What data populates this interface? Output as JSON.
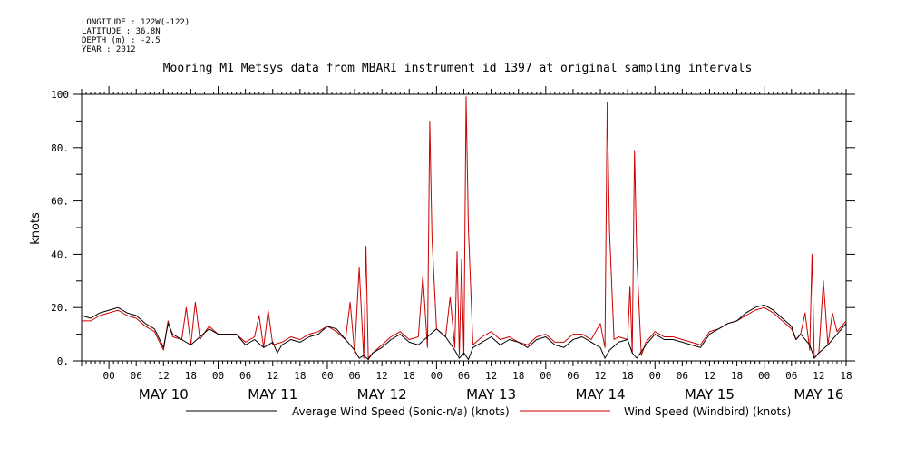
{
  "meta": {
    "longitude": "LONGITUDE : 122W(-122)",
    "latitude": "LATITUDE : 36.8N",
    "depth": "DEPTH (m) : -2.5",
    "year": "YEAR : 2012"
  },
  "chart_data": {
    "type": "line",
    "title": "Mooring M1 Metsys data from MBARI instrument id 1397 at original sampling intervals",
    "ylabel": "knots",
    "xlabel": "",
    "ylim": [
      0,
      100
    ],
    "y_ticks": [
      "0.",
      "20.",
      "40.",
      "60.",
      "80.",
      "100"
    ],
    "y_tick_values": [
      0,
      20,
      40,
      60,
      80,
      100
    ],
    "xlim_hours": [
      -6,
      162
    ],
    "hour_tick_labels": [
      "00",
      "06",
      "12",
      "18",
      "00",
      "06",
      "12",
      "18",
      "00",
      "06",
      "12",
      "18",
      "00",
      "06",
      "12",
      "18",
      "00",
      "06",
      "12",
      "18",
      "00",
      "06",
      "12",
      "18",
      "00",
      "06",
      "12",
      "18"
    ],
    "day_labels": [
      "MAY 10",
      "MAY 11",
      "MAY 12",
      "MAY 13",
      "MAY 14",
      "MAY 15",
      "MAY 16"
    ],
    "grid": false,
    "legend_position": "bottom",
    "series": [
      {
        "name": "Average Wind Speed (Sonic-n/a) (knots)",
        "color": "#000000",
        "points": [
          [
            -6,
            17
          ],
          [
            -4,
            16
          ],
          [
            -2,
            18
          ],
          [
            0,
            19
          ],
          [
            2,
            20
          ],
          [
            4,
            18
          ],
          [
            6,
            17
          ],
          [
            8,
            14
          ],
          [
            10,
            12
          ],
          [
            12,
            5
          ],
          [
            13,
            14
          ],
          [
            14,
            10
          ],
          [
            16,
            8
          ],
          [
            18,
            6
          ],
          [
            20,
            9
          ],
          [
            22,
            12
          ],
          [
            24,
            10
          ],
          [
            26,
            10
          ],
          [
            28,
            10
          ],
          [
            30,
            6
          ],
          [
            32,
            8
          ],
          [
            34,
            5
          ],
          [
            36,
            7
          ],
          [
            37,
            3
          ],
          [
            38,
            6
          ],
          [
            40,
            8
          ],
          [
            42,
            7
          ],
          [
            44,
            9
          ],
          [
            46,
            10
          ],
          [
            48,
            13
          ],
          [
            50,
            12
          ],
          [
            52,
            8
          ],
          [
            54,
            4
          ],
          [
            55,
            1
          ],
          [
            56,
            2
          ],
          [
            57,
            0.5
          ],
          [
            58,
            3
          ],
          [
            60,
            5
          ],
          [
            62,
            8
          ],
          [
            64,
            10
          ],
          [
            66,
            7
          ],
          [
            68,
            6
          ],
          [
            70,
            9
          ],
          [
            72,
            12
          ],
          [
            74,
            9
          ],
          [
            76,
            4
          ],
          [
            77,
            1
          ],
          [
            78,
            3
          ],
          [
            79,
            0.5
          ],
          [
            80,
            5
          ],
          [
            82,
            7
          ],
          [
            84,
            9
          ],
          [
            86,
            6
          ],
          [
            88,
            8
          ],
          [
            90,
            7
          ],
          [
            92,
            5
          ],
          [
            94,
            8
          ],
          [
            96,
            9
          ],
          [
            98,
            6
          ],
          [
            100,
            5
          ],
          [
            102,
            8
          ],
          [
            104,
            9
          ],
          [
            106,
            7
          ],
          [
            108,
            5
          ],
          [
            109,
            1
          ],
          [
            110,
            4
          ],
          [
            112,
            7
          ],
          [
            114,
            8
          ],
          [
            115,
            3
          ],
          [
            116,
            1
          ],
          [
            118,
            6
          ],
          [
            120,
            10
          ],
          [
            122,
            8
          ],
          [
            124,
            8
          ],
          [
            126,
            7
          ],
          [
            128,
            6
          ],
          [
            130,
            5
          ],
          [
            132,
            10
          ],
          [
            134,
            12
          ],
          [
            136,
            14
          ],
          [
            138,
            15
          ],
          [
            140,
            18
          ],
          [
            142,
            20
          ],
          [
            144,
            21
          ],
          [
            146,
            19
          ],
          [
            148,
            16
          ],
          [
            150,
            13
          ],
          [
            151,
            8
          ],
          [
            152,
            10
          ],
          [
            154,
            6
          ],
          [
            155,
            1
          ],
          [
            156,
            3
          ],
          [
            158,
            6
          ],
          [
            160,
            10
          ],
          [
            162,
            14
          ]
        ]
      },
      {
        "name": "Wind Speed (Windbird) (knots)",
        "color": "#cc0000",
        "points": [
          [
            -6,
            15
          ],
          [
            -4,
            15
          ],
          [
            -2,
            17
          ],
          [
            0,
            18
          ],
          [
            2,
            19
          ],
          [
            4,
            17
          ],
          [
            6,
            16
          ],
          [
            8,
            13
          ],
          [
            10,
            11
          ],
          [
            12,
            4
          ],
          [
            13,
            15
          ],
          [
            14,
            9
          ],
          [
            16,
            8
          ],
          [
            17,
            20
          ],
          [
            18,
            6
          ],
          [
            19,
            22
          ],
          [
            20,
            8
          ],
          [
            22,
            13
          ],
          [
            24,
            10
          ],
          [
            26,
            10
          ],
          [
            28,
            10
          ],
          [
            30,
            7
          ],
          [
            32,
            9
          ],
          [
            33,
            17
          ],
          [
            34,
            5
          ],
          [
            35,
            19
          ],
          [
            36,
            6
          ],
          [
            38,
            7
          ],
          [
            40,
            9
          ],
          [
            42,
            8
          ],
          [
            44,
            10
          ],
          [
            46,
            11
          ],
          [
            48,
            13
          ],
          [
            50,
            11
          ],
          [
            52,
            8
          ],
          [
            53,
            22
          ],
          [
            54,
            3
          ],
          [
            55,
            35
          ],
          [
            56,
            1
          ],
          [
            56.5,
            43
          ],
          [
            57,
            1
          ],
          [
            58,
            3
          ],
          [
            60,
            6
          ],
          [
            62,
            9
          ],
          [
            64,
            11
          ],
          [
            66,
            8
          ],
          [
            68,
            9
          ],
          [
            69,
            32
          ],
          [
            70,
            5
          ],
          [
            70.5,
            90
          ],
          [
            71,
            46
          ],
          [
            72,
            12
          ],
          [
            74,
            9
          ],
          [
            75,
            24
          ],
          [
            76,
            5
          ],
          [
            76.5,
            41
          ],
          [
            77,
            2
          ],
          [
            77.5,
            38
          ],
          [
            78,
            2
          ],
          [
            78.5,
            99
          ],
          [
            79,
            50
          ],
          [
            80,
            6
          ],
          [
            82,
            9
          ],
          [
            84,
            11
          ],
          [
            86,
            8
          ],
          [
            88,
            9
          ],
          [
            90,
            7
          ],
          [
            92,
            6
          ],
          [
            94,
            9
          ],
          [
            96,
            10
          ],
          [
            98,
            7
          ],
          [
            100,
            7
          ],
          [
            102,
            10
          ],
          [
            104,
            10
          ],
          [
            106,
            8
          ],
          [
            108,
            14
          ],
          [
            109,
            5
          ],
          [
            109.5,
            97
          ],
          [
            110,
            49
          ],
          [
            111,
            8
          ],
          [
            112,
            9
          ],
          [
            114,
            8
          ],
          [
            114.5,
            28
          ],
          [
            115,
            3
          ],
          [
            115.5,
            79
          ],
          [
            116,
            39
          ],
          [
            117,
            2
          ],
          [
            118,
            7
          ],
          [
            120,
            11
          ],
          [
            122,
            9
          ],
          [
            124,
            9
          ],
          [
            126,
            8
          ],
          [
            128,
            7
          ],
          [
            130,
            6
          ],
          [
            132,
            11
          ],
          [
            134,
            12
          ],
          [
            136,
            14
          ],
          [
            138,
            15
          ],
          [
            140,
            17
          ],
          [
            142,
            19
          ],
          [
            144,
            20
          ],
          [
            146,
            18
          ],
          [
            148,
            15
          ],
          [
            150,
            12
          ],
          [
            151,
            8
          ],
          [
            152,
            10
          ],
          [
            153,
            18
          ],
          [
            154,
            4
          ],
          [
            154.5,
            40
          ],
          [
            155,
            1
          ],
          [
            156,
            3
          ],
          [
            157,
            30
          ],
          [
            158,
            6
          ],
          [
            159,
            18
          ],
          [
            160,
            11
          ],
          [
            162,
            15
          ]
        ]
      }
    ]
  }
}
